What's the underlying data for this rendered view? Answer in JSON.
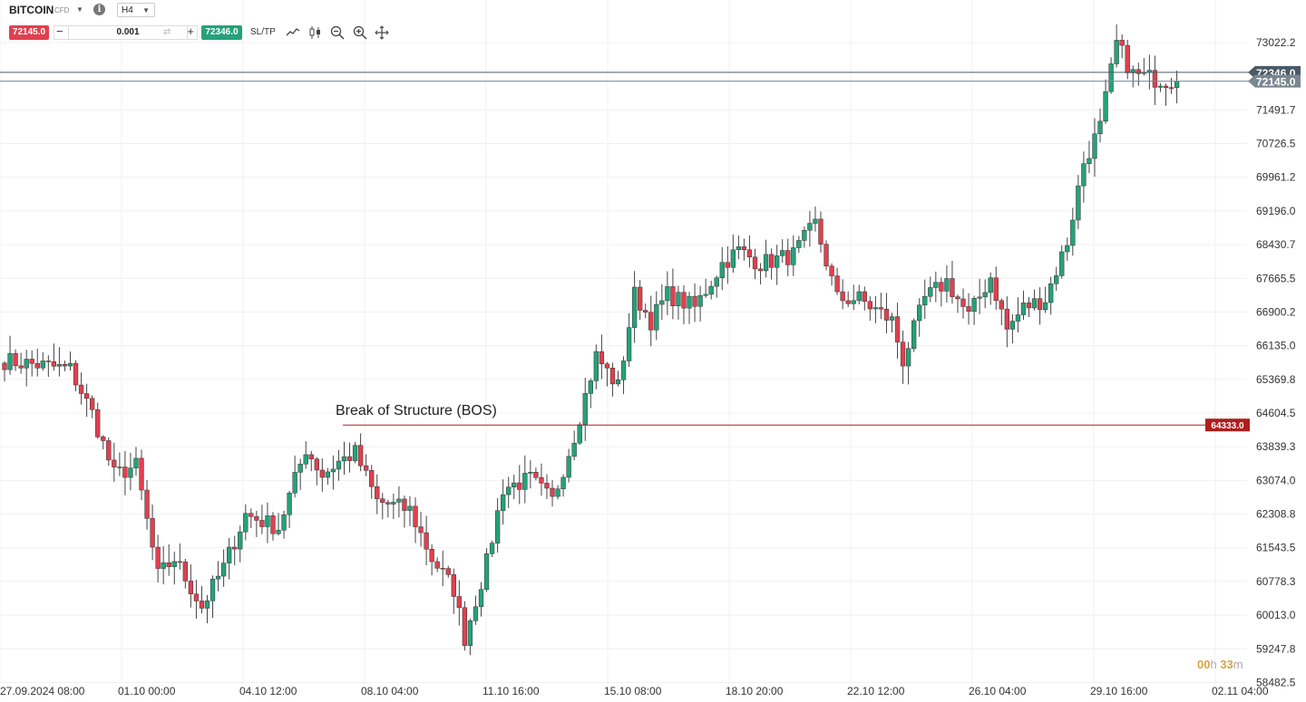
{
  "toolbar": {
    "symbol": "BITCOIN",
    "symbol_type": "CFD",
    "info_glyph": "i",
    "timeframe": "H4",
    "sell_price": "72145.0",
    "buy_price": "72346.0",
    "quantity": "0.001",
    "minus_glyph": "−",
    "plus_glyph": "+",
    "sltp_label": "SL/TP",
    "sell_color": "#e0404f",
    "buy_color": "#26a17a",
    "icons": [
      "chevron-down-icon",
      "info-icon",
      "swap-icon",
      "line-chart-icon",
      "candlestick-icon",
      "zoom-out-icon",
      "zoom-in-icon",
      "crosshair-icon"
    ]
  },
  "timer": {
    "hours": "00",
    "h_unit": "h",
    "minutes": "33",
    "m_unit": "m"
  },
  "chart_data": {
    "type": "candlestick",
    "title": "",
    "ylim": [
      58482.5,
      73500
    ],
    "y_ticks": [
      "73022.2",
      "71491.7",
      "70726.5",
      "69961.2",
      "69196.0",
      "68430.7",
      "67665.5",
      "66900.2",
      "66135.0",
      "65369.8",
      "64604.5",
      "63839.3",
      "63074.0",
      "62308.8",
      "61543.5",
      "60778.3",
      "60013.0",
      "59247.8",
      "58482.5"
    ],
    "x_ticks": [
      "27.09.2024 08:00",
      "01.10 00:00",
      "04.10 12:00",
      "08.10 04:00",
      "11.10 16:00",
      "15.10 08:00",
      "18.10 20:00",
      "22.10 12:00",
      "26.10 04:00",
      "29.10 16:00",
      "02.11 04:00"
    ],
    "up_color": "#26a17a",
    "down_color": "#e0404f",
    "price_lines": [
      {
        "label": "72346.0",
        "value": 72346.0,
        "color": "#4a5a66"
      },
      {
        "label": "72145.0",
        "value": 72145.0,
        "color": "#7a8690"
      }
    ],
    "annotation": {
      "text": "Break of Structure (BOS)",
      "value": 64333.0,
      "label": "64333.0",
      "color": "#b01e1e"
    },
    "waypoints": [
      [
        0,
        65800
      ],
      [
        12,
        65600
      ],
      [
        16,
        64600
      ],
      [
        20,
        63200
      ],
      [
        24,
        63400
      ],
      [
        28,
        60900
      ],
      [
        31,
        61300
      ],
      [
        36,
        60200
      ],
      [
        40,
        61100
      ],
      [
        44,
        62300
      ],
      [
        50,
        62000
      ],
      [
        55,
        63800
      ],
      [
        58,
        63200
      ],
      [
        61,
        63500
      ],
      [
        64,
        63700
      ],
      [
        68,
        62600
      ],
      [
        74,
        62400
      ],
      [
        78,
        61300
      ],
      [
        82,
        60600
      ],
      [
        84,
        59500
      ],
      [
        88,
        61200
      ],
      [
        91,
        62900
      ],
      [
        96,
        63100
      ],
      [
        100,
        62600
      ],
      [
        104,
        64100
      ],
      [
        108,
        65900
      ],
      [
        112,
        65200
      ],
      [
        115,
        67300
      ],
      [
        118,
        66700
      ],
      [
        121,
        67300
      ],
      [
        126,
        67000
      ],
      [
        131,
        68000
      ],
      [
        134,
        68300
      ],
      [
        138,
        68000
      ],
      [
        144,
        68200
      ],
      [
        148,
        68900
      ],
      [
        152,
        67200
      ],
      [
        156,
        67200
      ],
      [
        162,
        66700
      ],
      [
        164,
        65800
      ],
      [
        168,
        67200
      ],
      [
        172,
        67600
      ],
      [
        176,
        66800
      ],
      [
        180,
        67700
      ],
      [
        183,
        66500
      ],
      [
        186,
        67000
      ],
      [
        190,
        67200
      ],
      [
        194,
        68500
      ],
      [
        197,
        70300
      ],
      [
        200,
        71100
      ],
      [
        203,
        73000
      ],
      [
        206,
        72300
      ],
      [
        210,
        72200
      ],
      [
        214,
        72150
      ]
    ]
  }
}
